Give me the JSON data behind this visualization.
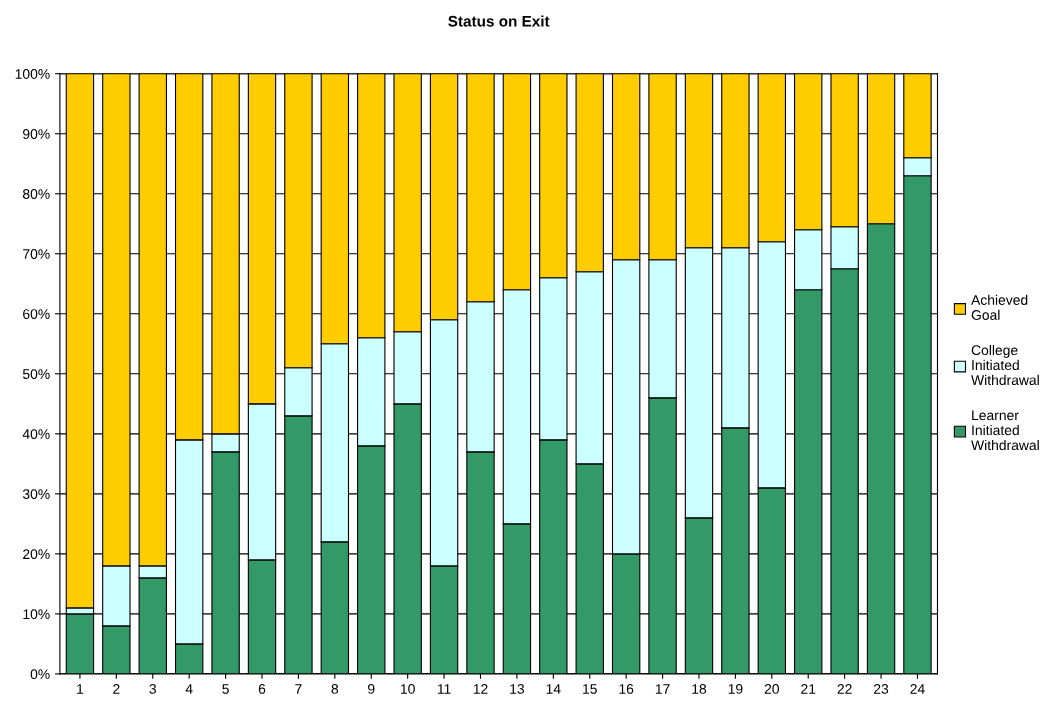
{
  "chart_data": {
    "type": "bar",
    "title": "Status on Exit",
    "stacked": true,
    "categories": [
      "1",
      "2",
      "3",
      "4",
      "5",
      "6",
      "7",
      "8",
      "9",
      "10",
      "11",
      "12",
      "13",
      "14",
      "15",
      "16",
      "17",
      "18",
      "19",
      "20",
      "21",
      "22",
      "23",
      "24"
    ],
    "series": [
      {
        "name": "Learner Initiated Withdrawal",
        "color": "#339966",
        "values": [
          10,
          8,
          16,
          5,
          37,
          19,
          43,
          22,
          38,
          45,
          18,
          37,
          25,
          39,
          35,
          20,
          46,
          26,
          41,
          31,
          64,
          67.5,
          75,
          83
        ]
      },
      {
        "name": "College Initiated Withdrawal",
        "color": "#ccffff",
        "values": [
          1,
          10,
          2,
          34,
          3,
          26,
          8,
          33,
          18,
          12,
          41,
          25,
          39,
          27,
          32,
          49,
          23,
          45,
          30,
          41,
          10,
          7,
          null,
          3
        ]
      },
      {
        "name": "Achieved Goal",
        "color": "#ffcc00",
        "values": [
          89,
          82,
          82,
          61,
          60,
          55,
          49,
          45,
          44,
          43,
          41,
          38,
          36,
          34,
          33,
          31,
          31,
          29,
          29,
          28,
          26,
          25.5,
          25,
          14
        ]
      }
    ],
    "ylim": [
      0,
      100
    ],
    "yticks": [
      {
        "value": 0,
        "label": "0%"
      },
      {
        "value": 10,
        "label": "10%"
      },
      {
        "value": 20,
        "label": "20%"
      },
      {
        "value": 30,
        "label": "30%"
      },
      {
        "value": 40,
        "label": "40%"
      },
      {
        "value": 50,
        "label": "50%"
      },
      {
        "value": 60,
        "label": "60%"
      },
      {
        "value": 70,
        "label": "70%"
      },
      {
        "value": 80,
        "label": "80%"
      },
      {
        "value": 90,
        "label": "90%"
      },
      {
        "value": 100,
        "label": "100%"
      }
    ],
    "grid": "y",
    "legend": "right"
  }
}
